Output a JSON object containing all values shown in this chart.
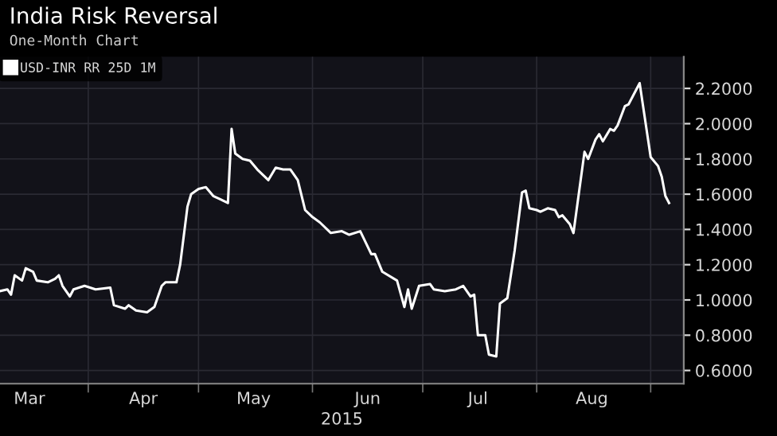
{
  "chart_data": {
    "type": "line",
    "title": "India Risk Reversal",
    "subtitle": "One-Month Chart",
    "xlabel": "2015",
    "x": [
      "2015-03-08",
      "2015-03-10",
      "2015-03-11",
      "2015-03-12",
      "2015-03-14",
      "2015-03-15",
      "2015-03-17",
      "2015-03-18",
      "2015-03-21",
      "2015-03-23",
      "2015-03-24",
      "2015-03-25",
      "2015-03-27",
      "2015-03-28",
      "2015-03-31",
      "2015-04-03",
      "2015-04-07",
      "2015-04-08",
      "2015-04-11",
      "2015-04-12",
      "2015-04-14",
      "2015-04-17",
      "2015-04-19",
      "2015-04-21",
      "2015-04-22",
      "2015-04-25",
      "2015-04-26",
      "2015-04-28",
      "2015-04-29",
      "2015-05-01",
      "2015-05-03",
      "2015-05-05",
      "2015-05-07",
      "2015-05-09",
      "2015-05-10",
      "2015-05-11",
      "2015-05-13",
      "2015-05-15",
      "2015-05-17",
      "2015-05-20",
      "2015-05-22",
      "2015-05-24",
      "2015-05-26",
      "2015-05-28",
      "2015-05-30",
      "2015-06-01",
      "2015-06-03",
      "2015-06-05",
      "2015-06-06",
      "2015-06-09",
      "2015-06-11",
      "2015-06-14",
      "2015-06-17",
      "2015-06-18",
      "2015-06-20",
      "2015-06-24",
      "2015-06-26",
      "2015-06-27",
      "2015-06-28",
      "2015-06-30",
      "2015-07-03",
      "2015-07-04",
      "2015-07-07",
      "2015-07-10",
      "2015-07-12",
      "2015-07-14",
      "2015-07-15",
      "2015-07-16",
      "2015-07-18",
      "2015-07-19",
      "2015-07-21",
      "2015-07-22",
      "2015-07-24",
      "2015-07-26",
      "2015-07-28",
      "2015-07-29",
      "2015-07-30",
      "2015-08-01",
      "2015-08-02",
      "2015-08-04",
      "2015-08-06",
      "2015-08-07",
      "2015-08-08",
      "2015-08-10",
      "2015-08-11",
      "2015-08-14",
      "2015-08-15",
      "2015-08-17",
      "2015-08-18",
      "2015-08-19",
      "2015-08-21",
      "2015-08-22",
      "2015-08-23",
      "2015-08-25",
      "2015-08-26",
      "2015-08-29",
      "2015-09-01",
      "2015-09-03",
      "2015-09-04",
      "2015-09-05",
      "2015-09-06"
    ],
    "series": [
      {
        "name": "USD-INR RR 25D 1M",
        "color": "#ffffff",
        "values": [
          1.05,
          1.06,
          1.03,
          1.14,
          1.11,
          1.18,
          1.16,
          1.11,
          1.1,
          1.12,
          1.14,
          1.08,
          1.02,
          1.06,
          1.08,
          1.06,
          1.07,
          0.97,
          0.95,
          0.97,
          0.94,
          0.93,
          0.96,
          1.08,
          1.1,
          1.1,
          1.2,
          1.53,
          1.6,
          1.63,
          1.64,
          1.59,
          1.57,
          1.55,
          1.97,
          1.83,
          1.8,
          1.79,
          1.74,
          1.68,
          1.75,
          1.74,
          1.74,
          1.68,
          1.51,
          1.47,
          1.44,
          1.4,
          1.38,
          1.39,
          1.37,
          1.39,
          1.26,
          1.26,
          1.16,
          1.11,
          0.96,
          1.06,
          0.95,
          1.08,
          1.09,
          1.06,
          1.05,
          1.06,
          1.08,
          1.02,
          1.03,
          0.8,
          0.8,
          0.69,
          0.68,
          0.98,
          1.01,
          1.28,
          1.61,
          1.62,
          1.52,
          1.51,
          1.5,
          1.52,
          1.51,
          1.47,
          1.48,
          1.43,
          1.38,
          1.84,
          1.8,
          1.91,
          1.94,
          1.9,
          1.97,
          1.96,
          1.99,
          2.1,
          2.11,
          2.23,
          1.81,
          1.76,
          1.7,
          1.59,
          1.55
        ]
      }
    ],
    "xlim": [
      "2015-03-08",
      "2015-09-10"
    ],
    "xticks": [
      {
        "value": "2015-03-16",
        "label": "Mar"
      },
      {
        "value": "2015-04-16",
        "label": "Apr"
      },
      {
        "value": "2015-05-16",
        "label": "May"
      },
      {
        "value": "2015-06-16",
        "label": "Jun"
      },
      {
        "value": "2015-07-16",
        "label": "Jul"
      },
      {
        "value": "2015-08-16",
        "label": "Aug"
      },
      {
        "value": "2015-04-01",
        "label": null
      },
      {
        "value": "2015-05-01",
        "label": null
      },
      {
        "value": "2015-06-01",
        "label": null
      },
      {
        "value": "2015-07-01",
        "label": null
      },
      {
        "value": "2015-08-01",
        "label": null
      },
      {
        "value": "2015-09-01",
        "label": null
      }
    ],
    "ylim": [
      0.525,
      2.38
    ],
    "yticks": [
      {
        "value": 0.6,
        "label": "0.6000"
      },
      {
        "value": 0.8,
        "label": "0.8000"
      },
      {
        "value": 1.0,
        "label": "1.0000"
      },
      {
        "value": 1.2,
        "label": "1.2000"
      },
      {
        "value": 1.4,
        "label": "1.4000"
      },
      {
        "value": 1.6,
        "label": "1.6000"
      },
      {
        "value": 1.8,
        "label": "1.8000"
      },
      {
        "value": 2.0,
        "label": "2.0000"
      },
      {
        "value": 2.2,
        "label": "2.2000"
      }
    ],
    "grid": true,
    "legend": "top left",
    "marker": "none",
    "line_style": "solid"
  }
}
